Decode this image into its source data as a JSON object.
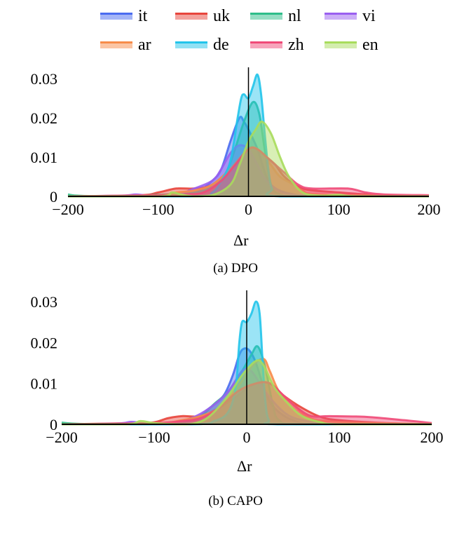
{
  "legend": [
    {
      "name": "it",
      "color": "#4a6cf0"
    },
    {
      "name": "uk",
      "color": "#e8453c"
    },
    {
      "name": "nl",
      "color": "#2ebd8a"
    },
    {
      "name": "vi",
      "color": "#9a5ff0"
    },
    {
      "name": "ar",
      "color": "#f78c4a"
    },
    {
      "name": "de",
      "color": "#22c4ea"
    },
    {
      "name": "zh",
      "color": "#f04a78"
    },
    {
      "name": "en",
      "color": "#a8dc5c"
    }
  ],
  "chart_data": [
    {
      "type": "area",
      "caption": "(a) DPO",
      "xlabel": "Δr",
      "ylabel": "",
      "xlim": [
        -200,
        200
      ],
      "ylim": [
        0,
        0.03
      ],
      "xticks": [
        "−200",
        "−100",
        "0",
        "100",
        "200"
      ],
      "yticks": [
        "0",
        "0.01",
        "0.02",
        "0.03"
      ],
      "vline": 0,
      "series": [
        {
          "name": "it",
          "points": [
            [
              -200,
              0
            ],
            [
              -100,
              0
            ],
            [
              -60,
              0.001
            ],
            [
              -40,
              0.004
            ],
            [
              -30,
              0.007
            ],
            [
              -20,
              0.014
            ],
            [
              -10,
              0.02
            ],
            [
              -5,
              0.019
            ],
            [
              0,
              0.017
            ],
            [
              10,
              0.012
            ],
            [
              20,
              0.005
            ],
            [
              30,
              0.002
            ],
            [
              50,
              0.0005
            ],
            [
              80,
              0
            ],
            [
              200,
              0
            ]
          ]
        },
        {
          "name": "uk",
          "points": [
            [
              -200,
              0
            ],
            [
              -120,
              0.0003
            ],
            [
              -100,
              0.001
            ],
            [
              -80,
              0.002
            ],
            [
              -60,
              0.002
            ],
            [
              -40,
              0.003
            ],
            [
              -20,
              0.007
            ],
            [
              -5,
              0.011
            ],
            [
              5,
              0.0125
            ],
            [
              20,
              0.01
            ],
            [
              30,
              0.008
            ],
            [
              40,
              0.005
            ],
            [
              60,
              0.002
            ],
            [
              100,
              0.001
            ],
            [
              150,
              0.0003
            ],
            [
              200,
              0
            ]
          ]
        },
        {
          "name": "nl",
          "points": [
            [
              -200,
              0.0005
            ],
            [
              -190,
              0.0002
            ],
            [
              -150,
              0
            ],
            [
              -60,
              0.001
            ],
            [
              -40,
              0.003
            ],
            [
              -25,
              0.006
            ],
            [
              -15,
              0.012
            ],
            [
              -5,
              0.019
            ],
            [
              5,
              0.024
            ],
            [
              12,
              0.021
            ],
            [
              18,
              0.012
            ],
            [
              25,
              0.003
            ],
            [
              35,
              0.0005
            ],
            [
              60,
              0
            ],
            [
              200,
              0
            ]
          ]
        },
        {
          "name": "vi",
          "points": [
            [
              -200,
              0
            ],
            [
              -140,
              0.0002
            ],
            [
              -125,
              0.0005
            ],
            [
              -110,
              0.0002
            ],
            [
              -80,
              0.0005
            ],
            [
              -60,
              0.002
            ],
            [
              -40,
              0.004
            ],
            [
              -30,
              0.007
            ],
            [
              -20,
              0.011
            ],
            [
              -10,
              0.013
            ],
            [
              0,
              0.012
            ],
            [
              10,
              0.008
            ],
            [
              20,
              0.004
            ],
            [
              40,
              0.001
            ],
            [
              80,
              0
            ],
            [
              200,
              0
            ]
          ]
        },
        {
          "name": "ar",
          "points": [
            [
              -200,
              0
            ],
            [
              -100,
              0.0003
            ],
            [
              -80,
              0.001
            ],
            [
              -60,
              0.0015
            ],
            [
              -40,
              0.003
            ],
            [
              -20,
              0.007
            ],
            [
              -5,
              0.011
            ],
            [
              5,
              0.0125
            ],
            [
              15,
              0.011
            ],
            [
              25,
              0.008
            ],
            [
              35,
              0.005
            ],
            [
              50,
              0.003
            ],
            [
              60,
              0.0015
            ],
            [
              80,
              0.0005
            ],
            [
              200,
              0
            ]
          ]
        },
        {
          "name": "de",
          "points": [
            [
              -200,
              0
            ],
            [
              -60,
              0
            ],
            [
              -40,
              0.001
            ],
            [
              -30,
              0.004
            ],
            [
              -20,
              0.009
            ],
            [
              -12,
              0.02
            ],
            [
              -8,
              0.025
            ],
            [
              -5,
              0.026
            ],
            [
              0,
              0.025
            ],
            [
              5,
              0.028
            ],
            [
              10,
              0.031
            ],
            [
              14,
              0.026
            ],
            [
              18,
              0.016
            ],
            [
              22,
              0.007
            ],
            [
              26,
              0.002
            ],
            [
              35,
              0
            ],
            [
              200,
              0
            ]
          ]
        },
        {
          "name": "zh",
          "points": [
            [
              -200,
              0
            ],
            [
              -100,
              0.0003
            ],
            [
              -70,
              0.0005
            ],
            [
              -50,
              0.001
            ],
            [
              -30,
              0.004
            ],
            [
              -15,
              0.008
            ],
            [
              0,
              0.012
            ],
            [
              10,
              0.012
            ],
            [
              25,
              0.009
            ],
            [
              40,
              0.006
            ],
            [
              55,
              0.003
            ],
            [
              70,
              0.002
            ],
            [
              110,
              0.002
            ],
            [
              130,
              0.001
            ],
            [
              150,
              0.0005
            ],
            [
              200,
              0.0003
            ]
          ]
        },
        {
          "name": "en",
          "points": [
            [
              -200,
              0
            ],
            [
              -100,
              0
            ],
            [
              -85,
              0.001
            ],
            [
              -75,
              0.0005
            ],
            [
              -60,
              0
            ],
            [
              -40,
              0.0003
            ],
            [
              -20,
              0.003
            ],
            [
              -10,
              0.008
            ],
            [
              0,
              0.014
            ],
            [
              8,
              0.017
            ],
            [
              15,
              0.019
            ],
            [
              25,
              0.016
            ],
            [
              35,
              0.01
            ],
            [
              45,
              0.005
            ],
            [
              60,
              0.001
            ],
            [
              80,
              0.0002
            ],
            [
              100,
              0.0004
            ],
            [
              120,
              0
            ],
            [
              200,
              0
            ]
          ]
        }
      ]
    },
    {
      "type": "area",
      "caption": "(b) CAPO",
      "xlabel": "Δr",
      "ylabel": "",
      "xlim": [
        -200,
        200
      ],
      "ylim": [
        0,
        0.03
      ],
      "xticks": [
        "−200",
        "−100",
        "0",
        "100",
        "200"
      ],
      "yticks": [
        "0",
        "0.01",
        "0.02",
        "0.03"
      ],
      "vline": 0,
      "series": [
        {
          "name": "it",
          "points": [
            [
              -200,
              0
            ],
            [
              -100,
              0
            ],
            [
              -60,
              0.001
            ],
            [
              -40,
              0.004
            ],
            [
              -25,
              0.007
            ],
            [
              -15,
              0.012
            ],
            [
              -8,
              0.017
            ],
            [
              -3,
              0.0185
            ],
            [
              3,
              0.018
            ],
            [
              10,
              0.015
            ],
            [
              20,
              0.008
            ],
            [
              30,
              0.004
            ],
            [
              50,
              0.001
            ],
            [
              80,
              0
            ],
            [
              200,
              0
            ]
          ]
        },
        {
          "name": "uk",
          "points": [
            [
              -200,
              0
            ],
            [
              -120,
              0.0003
            ],
            [
              -100,
              0.0005
            ],
            [
              -85,
              0.0015
            ],
            [
              -70,
              0.002
            ],
            [
              -50,
              0.002
            ],
            [
              -30,
              0.004
            ],
            [
              -10,
              0.007
            ],
            [
              10,
              0.01
            ],
            [
              25,
              0.01
            ],
            [
              40,
              0.007
            ],
            [
              60,
              0.004
            ],
            [
              80,
              0.0018
            ],
            [
              100,
              0.001
            ],
            [
              150,
              0.0003
            ],
            [
              200,
              0
            ]
          ]
        },
        {
          "name": "nl",
          "points": [
            [
              -200,
              0.0004
            ],
            [
              -180,
              0.0001
            ],
            [
              -120,
              0
            ],
            [
              -70,
              0.0005
            ],
            [
              -50,
              0.002
            ],
            [
              -35,
              0.005
            ],
            [
              -20,
              0.008
            ],
            [
              -5,
              0.013
            ],
            [
              5,
              0.017
            ],
            [
              12,
              0.019
            ],
            [
              20,
              0.014
            ],
            [
              28,
              0.005
            ],
            [
              35,
              0.001
            ],
            [
              60,
              0
            ],
            [
              200,
              0
            ]
          ]
        },
        {
          "name": "vi",
          "points": [
            [
              -200,
              0
            ],
            [
              -140,
              0.0002
            ],
            [
              -125,
              0.0006
            ],
            [
              -110,
              0.0003
            ],
            [
              -80,
              0.0005
            ],
            [
              -60,
              0.0015
            ],
            [
              -40,
              0.004
            ],
            [
              -20,
              0.008
            ],
            [
              -5,
              0.013
            ],
            [
              5,
              0.013
            ],
            [
              20,
              0.008
            ],
            [
              40,
              0.003
            ],
            [
              60,
              0.001
            ],
            [
              100,
              0
            ],
            [
              200,
              0
            ]
          ]
        },
        {
          "name": "ar",
          "points": [
            [
              -200,
              0
            ],
            [
              -100,
              0.0002
            ],
            [
              -70,
              0.001
            ],
            [
              -50,
              0.002
            ],
            [
              -30,
              0.004
            ],
            [
              -10,
              0.009
            ],
            [
              5,
              0.014
            ],
            [
              18,
              0.016
            ],
            [
              25,
              0.013
            ],
            [
              35,
              0.008
            ],
            [
              50,
              0.005
            ],
            [
              65,
              0.002
            ],
            [
              90,
              0.0007
            ],
            [
              200,
              0
            ]
          ]
        },
        {
          "name": "de",
          "points": [
            [
              -200,
              0
            ],
            [
              -60,
              0
            ],
            [
              -35,
              0.0008
            ],
            [
              -20,
              0.003
            ],
            [
              -12,
              0.009
            ],
            [
              -8,
              0.02
            ],
            [
              -5,
              0.025
            ],
            [
              0,
              0.025
            ],
            [
              5,
              0.027
            ],
            [
              10,
              0.03
            ],
            [
              14,
              0.027
            ],
            [
              17,
              0.016
            ],
            [
              20,
              0.006
            ],
            [
              24,
              0.001
            ],
            [
              35,
              0
            ],
            [
              200,
              0
            ]
          ]
        },
        {
          "name": "zh",
          "points": [
            [
              -200,
              0
            ],
            [
              -100,
              0.0003
            ],
            [
              -70,
              0.0008
            ],
            [
              -50,
              0.0015
            ],
            [
              -30,
              0.004
            ],
            [
              -10,
              0.008
            ],
            [
              10,
              0.01
            ],
            [
              25,
              0.01
            ],
            [
              40,
              0.007
            ],
            [
              55,
              0.004
            ],
            [
              70,
              0.002
            ],
            [
              90,
              0.002
            ],
            [
              130,
              0.0018
            ],
            [
              170,
              0.001
            ],
            [
              200,
              0.0003
            ]
          ]
        },
        {
          "name": "en",
          "points": [
            [
              -200,
              0
            ],
            [
              -130,
              0
            ],
            [
              -115,
              0.0008
            ],
            [
              -100,
              0.0003
            ],
            [
              -70,
              0
            ],
            [
              -55,
              0.0003
            ],
            [
              -40,
              0.002
            ],
            [
              -20,
              0.007
            ],
            [
              -5,
              0.012
            ],
            [
              10,
              0.0155
            ],
            [
              18,
              0.0145
            ],
            [
              30,
              0.009
            ],
            [
              45,
              0.005
            ],
            [
              60,
              0.002
            ],
            [
              80,
              0.0005
            ],
            [
              100,
              0
            ],
            [
              200,
              0
            ]
          ]
        }
      ]
    }
  ]
}
